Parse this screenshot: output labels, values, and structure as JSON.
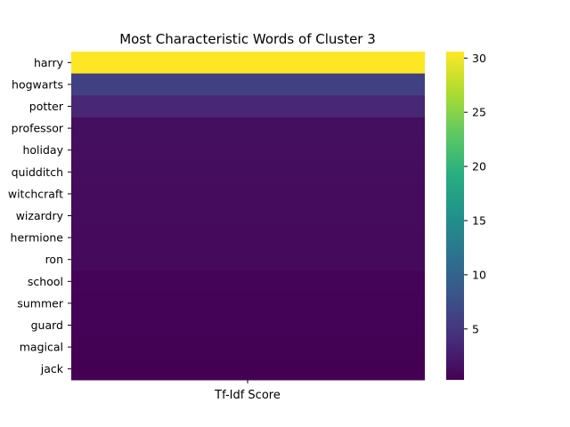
{
  "chart_data": {
    "type": "heatmap",
    "title": "Most Characteristic Words of Cluster 3",
    "xlabel": "Tf-Idf Score",
    "ylabel": "",
    "rows": [
      "harry",
      "hogwarts",
      "potter",
      "professor",
      "holiday",
      "quidditch",
      "witchcraft",
      "wizardry",
      "hermione",
      "ron",
      "school",
      "summer",
      "guard",
      "magical",
      "jack"
    ],
    "values": [
      30.6,
      6.0,
      3.6,
      1.5,
      1.4,
      1.3,
      1.2,
      1.2,
      1.1,
      1.1,
      0.6,
      0.5,
      0.5,
      0.4,
      0.3
    ],
    "colormap": "viridis",
    "colorbar": {
      "min": 0.3,
      "max": 30.6,
      "ticks": [
        5,
        10,
        15,
        20,
        25,
        30
      ]
    }
  }
}
